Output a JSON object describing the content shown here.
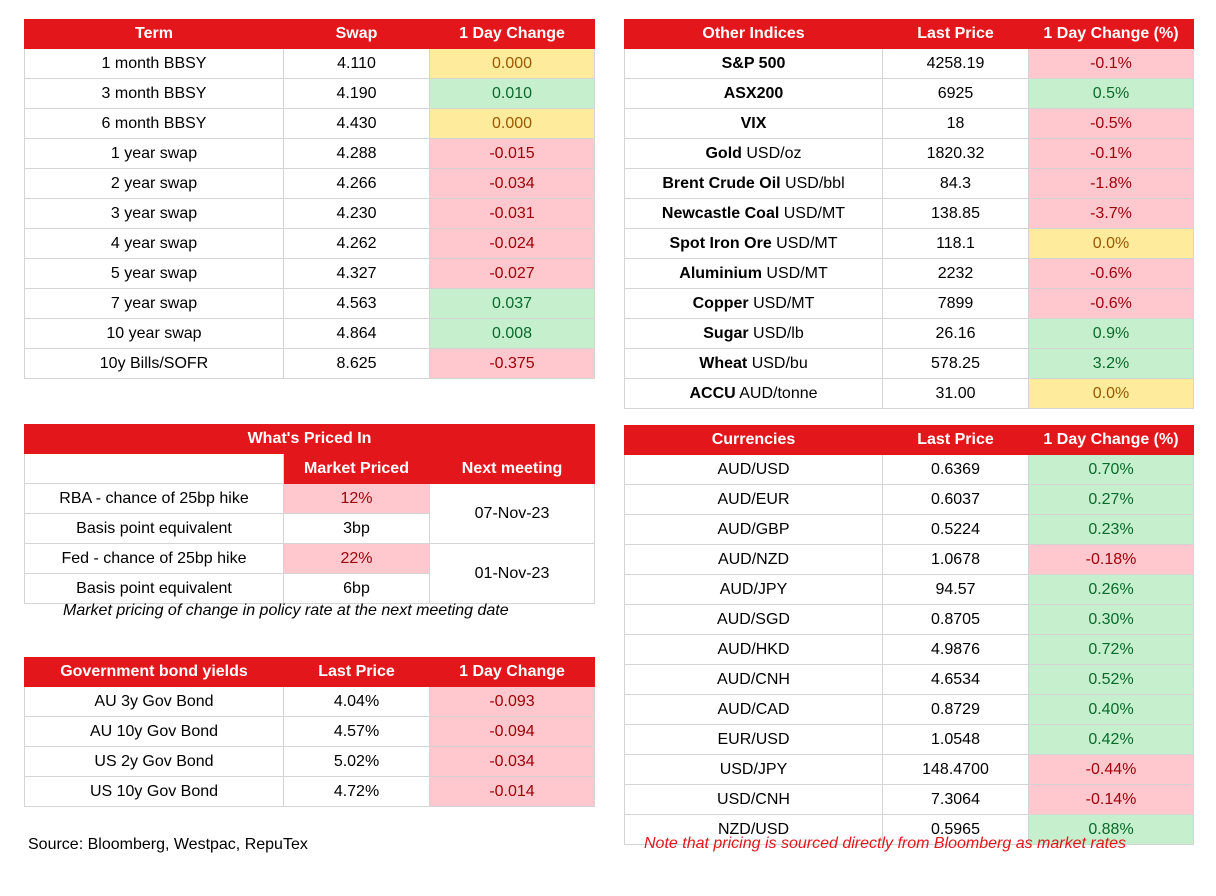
{
  "swap": {
    "headers": [
      "Term",
      "Swap",
      "1 Day Change"
    ],
    "rows": [
      {
        "term": "1 month BBSY",
        "value": "4.110",
        "change": "0.000",
        "tone": "zero"
      },
      {
        "term": "3 month BBSY",
        "value": "4.190",
        "change": "0.010",
        "tone": "pos"
      },
      {
        "term": "6 month BBSY",
        "value": "4.430",
        "change": "0.000",
        "tone": "zero"
      },
      {
        "term": "1 year swap",
        "value": "4.288",
        "change": "-0.015",
        "tone": "neg"
      },
      {
        "term": "2 year swap",
        "value": "4.266",
        "change": "-0.034",
        "tone": "neg"
      },
      {
        "term": "3 year swap",
        "value": "4.230",
        "change": "-0.031",
        "tone": "neg"
      },
      {
        "term": "4 year swap",
        "value": "4.262",
        "change": "-0.024",
        "tone": "neg"
      },
      {
        "term": "5 year swap",
        "value": "4.327",
        "change": "-0.027",
        "tone": "neg"
      },
      {
        "term": "7 year swap",
        "value": "4.563",
        "change": "0.037",
        "tone": "pos"
      },
      {
        "term": "10 year swap",
        "value": "4.864",
        "change": "0.008",
        "tone": "pos"
      },
      {
        "term": "10y Bills/SOFR",
        "value": "8.625",
        "change": "-0.375",
        "tone": "neg"
      }
    ]
  },
  "indices": {
    "headers": [
      "Other Indices",
      "Last Price",
      "1 Day Change (%)"
    ],
    "rows": [
      {
        "name": "S&P 500",
        "unit": "",
        "value": "4258.19",
        "change": "-0.1%",
        "tone": "neg"
      },
      {
        "name": "ASX200",
        "unit": "",
        "value": "6925",
        "change": "0.5%",
        "tone": "pos"
      },
      {
        "name": "VIX",
        "unit": "",
        "value": "18",
        "change": "-0.5%",
        "tone": "neg"
      },
      {
        "name": "Gold",
        "unit": "USD/oz",
        "value": "1820.32",
        "change": "-0.1%",
        "tone": "neg"
      },
      {
        "name": "Brent Crude Oil",
        "unit": "USD/bbl",
        "value": "84.3",
        "change": "-1.8%",
        "tone": "neg"
      },
      {
        "name": "Newcastle Coal",
        "unit": "USD/MT",
        "value": "138.85",
        "change": "-3.7%",
        "tone": "neg"
      },
      {
        "name": "Spot Iron Ore",
        "unit": "USD/MT",
        "value": "118.1",
        "change": "0.0%",
        "tone": "zero"
      },
      {
        "name": "Aluminium",
        "unit": "USD/MT",
        "value": "2232",
        "change": "-0.6%",
        "tone": "neg"
      },
      {
        "name": "Copper",
        "unit": "USD/MT",
        "value": "7899",
        "change": "-0.6%",
        "tone": "neg"
      },
      {
        "name": "Sugar",
        "unit": "USD/lb",
        "value": "26.16",
        "change": "0.9%",
        "tone": "pos"
      },
      {
        "name": "Wheat",
        "unit": "USD/bu",
        "value": "578.25",
        "change": "3.2%",
        "tone": "pos"
      },
      {
        "name": "ACCU",
        "unit": "AUD/tonne",
        "value": "31.00",
        "change": "0.0%",
        "tone": "zero"
      }
    ]
  },
  "priced": {
    "title": "What's Priced In",
    "headers": [
      "Market Priced",
      "Next meeting"
    ],
    "rows": [
      {
        "label": "RBA - chance of 25bp hike",
        "value": "12%",
        "tone": "neg"
      },
      {
        "label": "Basis point equivalent",
        "value": "3bp",
        "tone": "blank"
      },
      {
        "label": "Fed - chance of 25bp hike",
        "value": "22%",
        "tone": "neg"
      },
      {
        "label": "Basis point equivalent",
        "value": "6bp",
        "tone": "blank"
      }
    ],
    "meetings": [
      "07-Nov-23",
      "01-Nov-23"
    ],
    "note": "Market pricing of change in policy rate at the next meeting date"
  },
  "bonds": {
    "headers": [
      "Government bond yields",
      "Last Price",
      "1 Day Change"
    ],
    "rows": [
      {
        "name": "AU 3y Gov Bond",
        "value": "4.04%",
        "change": "-0.093",
        "tone": "neg"
      },
      {
        "name": "AU 10y Gov Bond",
        "value": "4.57%",
        "change": "-0.094",
        "tone": "neg"
      },
      {
        "name": "US 2y Gov Bond",
        "value": "5.02%",
        "change": "-0.034",
        "tone": "neg"
      },
      {
        "name": "US 10y Gov Bond",
        "value": "4.72%",
        "change": "-0.014",
        "tone": "neg"
      }
    ]
  },
  "currencies": {
    "headers": [
      "Currencies",
      "Last Price",
      "1 Day Change (%)"
    ],
    "rows": [
      {
        "pair": "AUD/USD",
        "value": "0.6369",
        "change": "0.70%",
        "tone": "pos"
      },
      {
        "pair": "AUD/EUR",
        "value": "0.6037",
        "change": "0.27%",
        "tone": "pos"
      },
      {
        "pair": "AUD/GBP",
        "value": "0.5224",
        "change": "0.23%",
        "tone": "pos"
      },
      {
        "pair": "AUD/NZD",
        "value": "1.0678",
        "change": "-0.18%",
        "tone": "neg"
      },
      {
        "pair": "AUD/JPY",
        "value": "94.57",
        "change": "0.26%",
        "tone": "pos"
      },
      {
        "pair": "AUD/SGD",
        "value": "0.8705",
        "change": "0.30%",
        "tone": "pos"
      },
      {
        "pair": "AUD/HKD",
        "value": "4.9876",
        "change": "0.72%",
        "tone": "pos"
      },
      {
        "pair": "AUD/CNH",
        "value": "4.6534",
        "change": "0.52%",
        "tone": "pos"
      },
      {
        "pair": "AUD/CAD",
        "value": "0.8729",
        "change": "0.40%",
        "tone": "pos"
      },
      {
        "pair": "EUR/USD",
        "value": "1.0548",
        "change": "0.42%",
        "tone": "pos"
      },
      {
        "pair": "USD/JPY",
        "value": "148.4700",
        "change": "-0.44%",
        "tone": "neg"
      },
      {
        "pair": "USD/CNH",
        "value": "7.3064",
        "change": "-0.14%",
        "tone": "neg"
      },
      {
        "pair": "NZD/USD",
        "value": "0.5965",
        "change": "0.88%",
        "tone": "pos"
      }
    ]
  },
  "footer": {
    "source": "Source: Bloomberg, Westpac, RepuTex",
    "note": "Note that pricing is sourced directly from Bloomberg as market rates"
  }
}
